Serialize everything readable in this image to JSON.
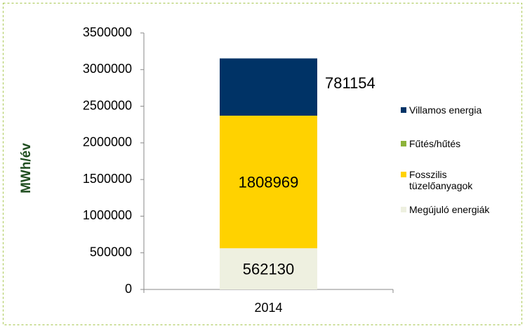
{
  "chart_data": {
    "type": "stacked_bar",
    "y_label": "MWh/év",
    "categories": [
      "2014"
    ],
    "series": [
      {
        "name": "Megújuló energiák",
        "color": "#eef0e0",
        "values": [
          562130
        ]
      },
      {
        "name": "Fosszilis tüzelőanyagok",
        "color": "#ffd200",
        "values": [
          1808969
        ]
      },
      {
        "name": "Fűtés/hűtés",
        "color": "#8db33a",
        "values": [
          null
        ]
      },
      {
        "name": "Villamos energia",
        "color": "#003366",
        "values": [
          781154
        ]
      }
    ],
    "ylim": [
      0,
      3500000
    ],
    "yticks": [
      0,
      500000,
      1000000,
      1500000,
      2000000,
      2500000,
      3000000,
      3500000
    ],
    "legend": "right"
  }
}
